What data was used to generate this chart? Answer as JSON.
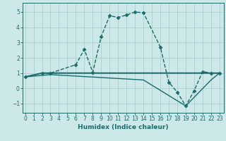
{
  "xlabel": "Humidex (Indice chaleur)",
  "bg_color": "#cce8e8",
  "grid_color": "#aacece",
  "line_color": "#1a6b6b",
  "xlim": [
    -0.3,
    23.5
  ],
  "ylim": [
    -1.6,
    5.6
  ],
  "xticks": [
    0,
    1,
    2,
    3,
    4,
    5,
    6,
    7,
    8,
    9,
    10,
    11,
    12,
    13,
    14,
    15,
    16,
    17,
    18,
    19,
    20,
    21,
    22,
    23
  ],
  "yticks": [
    -1,
    0,
    1,
    2,
    3,
    4,
    5
  ],
  "lines": [
    {
      "x": [
        0,
        2,
        3,
        6,
        7,
        8,
        9,
        10,
        11,
        12,
        13,
        14,
        16,
        17,
        18,
        19,
        20,
        21,
        22,
        23
      ],
      "y": [
        0.75,
        1.0,
        1.0,
        1.55,
        2.55,
        1.05,
        3.4,
        4.75,
        4.65,
        4.8,
        5.0,
        4.95,
        2.7,
        0.4,
        -0.25,
        -1.15,
        -0.15,
        1.1,
        1.0,
        1.0
      ],
      "style": "--",
      "marker": "D",
      "markersize": 2.5,
      "linewidth": 1.0
    },
    {
      "x": [
        0,
        2,
        3,
        22,
        23
      ],
      "y": [
        0.75,
        1.0,
        1.0,
        1.0,
        1.0
      ],
      "style": "-",
      "marker": null,
      "linewidth": 1.4
    },
    {
      "x": [
        0,
        3,
        14,
        19,
        22,
        23
      ],
      "y": [
        0.75,
        0.9,
        0.55,
        -1.15,
        0.55,
        1.0
      ],
      "style": "-",
      "marker": null,
      "linewidth": 1.0
    }
  ]
}
